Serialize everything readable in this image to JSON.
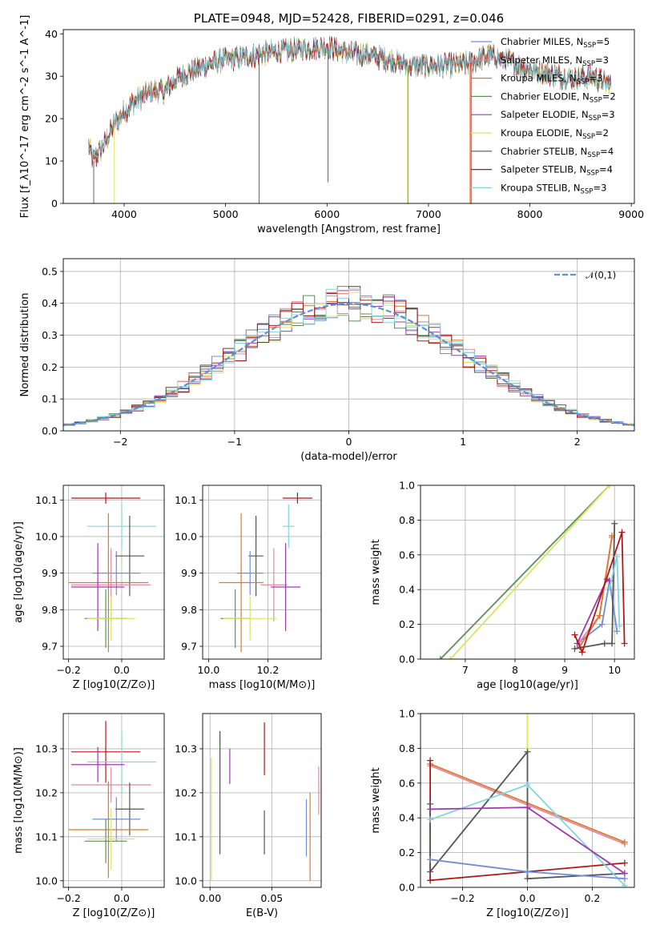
{
  "colors": {
    "Chabrier MILES": "#6f8de0",
    "Salpeter MILES": "#e28aa0",
    "Kroupa MILES": "#e0772a",
    "Chabrier ELODIE": "#5e8f5a",
    "Salpeter ELODIE": "#a039b0",
    "Kroupa ELODIE": "#d6e660",
    "Chabrier STELIB": "#555555",
    "Salpeter STELIB": "#b01818",
    "Kroupa STELIB": "#7fd6e0"
  },
  "chart_data": [
    {
      "id": "spectrum",
      "type": "line",
      "title": "PLATE=0948, MJD=52428, FIBERID=0291, z=0.046",
      "xlabel": "wavelength [Angstrom, rest frame]",
      "ylabel": "Flux [f_λ10^-17 erg cm^-2 s^-1 A^-1]",
      "xlim": [
        3400,
        9030
      ],
      "ylim": [
        0,
        41
      ],
      "xticks": [
        4000,
        5000,
        6000,
        7000,
        8000,
        9000
      ],
      "yticks": [
        0,
        10,
        20,
        30,
        40
      ],
      "grid": false,
      "legend_position": "upper right",
      "legend": [
        {
          "name": "Chabrier MILES",
          "nssp": "5"
        },
        {
          "name": "Salpeter MILES",
          "nssp": "3"
        },
        {
          "name": "Kroupa MILES",
          "nssp": "3"
        },
        {
          "name": "Chabrier ELODIE",
          "nssp": "2"
        },
        {
          "name": "Salpeter ELODIE",
          "nssp": "3"
        },
        {
          "name": "Kroupa ELODIE",
          "nssp": "2"
        },
        {
          "name": "Chabrier STELIB",
          "nssp": "4"
        },
        {
          "name": "Salpeter STELIB",
          "nssp": "4"
        },
        {
          "name": "Kroupa STELIB",
          "nssp": "3"
        }
      ],
      "continuum_x": [
        3650,
        3700,
        3800,
        3900,
        4000,
        4100,
        4200,
        4300,
        4400,
        4500,
        4600,
        4700,
        4800,
        5000,
        5200,
        5400,
        5600,
        5800,
        6000,
        6200,
        6400,
        6600,
        6800,
        7000,
        7200,
        7400,
        7600,
        7800,
        8000,
        8200,
        8400,
        8600,
        8800
      ],
      "continuum_y": [
        13.5,
        10,
        14,
        18.5,
        21.5,
        24,
        25.5,
        26.5,
        26.5,
        29,
        30.5,
        31.5,
        32.5,
        34,
        34.5,
        35.5,
        36,
        36.5,
        37,
        35.5,
        35,
        34,
        32.5,
        32.5,
        32.5,
        33,
        35,
        33.5,
        31.5,
        30.5,
        29.5,
        30,
        28
      ],
      "dropouts": [
        {
          "x": 3700,
          "y": 0,
          "series": "Chabrier STELIB"
        },
        {
          "x": 3900,
          "y": 0,
          "series": "Kroupa ELODIE"
        },
        {
          "x": 5330,
          "y": 0,
          "series": "Chabrier STELIB"
        },
        {
          "x": 6010,
          "y": 5,
          "series": "Chabrier STELIB"
        },
        {
          "x": 6790,
          "y": 0,
          "series": "Kroupa ELODIE"
        },
        {
          "x": 6800,
          "y": 0,
          "series": "Kroupa MILES"
        },
        {
          "x": 7410,
          "y": 0,
          "series": "Kroupa MILES"
        },
        {
          "x": 7420,
          "y": 0,
          "series": "Salpeter STELIB"
        }
      ]
    },
    {
      "id": "residuals",
      "type": "histogram",
      "xlabel": "(data-model)/error",
      "ylabel": "Normed distribution",
      "xlim": [
        -2.5,
        2.5
      ],
      "ylim": [
        0,
        0.54
      ],
      "xticks": [
        -2,
        -1,
        0,
        1,
        2
      ],
      "yticks": [
        0.0,
        0.1,
        0.2,
        0.3,
        0.4,
        0.5
      ],
      "grid": true,
      "legend_position": "upper right",
      "reference_curve": {
        "name": "𝒩(0,1)",
        "mean": 0,
        "sigma": 1
      },
      "bin_width": 0.1
    },
    {
      "id": "age_vs_Z",
      "type": "scatter",
      "xlabel": "Z [log10(Z/Z⊙)]",
      "ylabel": "age  [log10(age/yr)]",
      "xlim": [
        -0.22,
        0.16
      ],
      "ylim": [
        9.665,
        10.14
      ],
      "xticks": [
        -0.2,
        0.0
      ],
      "yticks": [
        9.7,
        9.8,
        9.9,
        10.0,
        10.1
      ],
      "grid": true,
      "points": [
        {
          "series": "Salpeter STELIB",
          "x": -0.06,
          "xerr": 0.13,
          "y": 10.105,
          "yerr": 0.015
        },
        {
          "series": "Kroupa STELIB",
          "x": 0.0,
          "xerr": 0.13,
          "y": 10.028,
          "yerr": 0.06
        },
        {
          "series": "Chabrier STELIB",
          "x": 0.03,
          "xerr": 0.055,
          "y": 9.947,
          "yerr": 0.11
        },
        {
          "series": "Chabrier MILES",
          "x": -0.02,
          "xerr": 0.09,
          "y": 9.9,
          "yerr": 0.06
        },
        {
          "series": "Kroupa MILES",
          "x": -0.05,
          "xerr": 0.15,
          "y": 9.874,
          "yerr": 0.19
        },
        {
          "series": "Salpeter MILES",
          "x": -0.04,
          "xerr": 0.15,
          "y": 9.868,
          "yerr": 0.1
        },
        {
          "series": "Salpeter ELODIE",
          "x": -0.09,
          "xerr": 0.1,
          "y": 9.862,
          "yerr": 0.12
        },
        {
          "series": "Chabrier ELODIE",
          "x": -0.06,
          "xerr": 0.08,
          "y": 9.776,
          "yerr": 0.08
        },
        {
          "series": "Kroupa ELODIE",
          "x": -0.04,
          "xerr": 0.09,
          "y": 9.776,
          "yerr": 0.06
        }
      ]
    },
    {
      "id": "age_vs_mass",
      "type": "scatter",
      "xlabel": "mass [log10(M/M⊙)]",
      "ylabel": "",
      "xlim": [
        9.98,
        10.38
      ],
      "ylim": [
        9.665,
        10.14
      ],
      "xticks": [
        10.0,
        10.2
      ],
      "yticks": [
        9.7,
        9.8,
        9.9,
        10.0,
        10.1
      ],
      "grid": true,
      "points": [
        {
          "series": "Salpeter STELIB",
          "x": 10.3,
          "xerr": 0.05,
          "y": 10.105,
          "yerr": 0.015
        },
        {
          "series": "Kroupa STELIB",
          "x": 10.27,
          "xerr": 0.02,
          "y": 10.028,
          "yerr": 0.06
        },
        {
          "series": "Chabrier STELIB",
          "x": 10.16,
          "xerr": 0.025,
          "y": 9.947,
          "yerr": 0.11
        },
        {
          "series": "Chabrier MILES",
          "x": 10.14,
          "xerr": 0.045,
          "y": 9.9,
          "yerr": 0.06
        },
        {
          "series": "Kroupa MILES",
          "x": 10.11,
          "xerr": 0.075,
          "y": 9.874,
          "yerr": 0.19
        },
        {
          "series": "Salpeter MILES",
          "x": 10.22,
          "xerr": 0.045,
          "y": 9.868,
          "yerr": 0.1
        },
        {
          "series": "Salpeter ELODIE",
          "x": 10.26,
          "xerr": 0.05,
          "y": 9.862,
          "yerr": 0.12
        },
        {
          "series": "Chabrier ELODIE",
          "x": 10.09,
          "xerr": 0.05,
          "y": 9.776,
          "yerr": 0.08
        },
        {
          "series": "Kroupa ELODIE",
          "x": 10.14,
          "xerr": 0.09,
          "y": 9.776,
          "yerr": 0.06
        }
      ]
    },
    {
      "id": "weight_vs_age",
      "type": "line",
      "xlabel": "age  [log10(age/yr)]",
      "ylabel": "mass weight",
      "xlim": [
        6.1,
        10.4
      ],
      "ylim": [
        0,
        1.0
      ],
      "xticks": [
        7,
        8,
        9,
        10
      ],
      "yticks": [
        0.0,
        0.2,
        0.4,
        0.6,
        0.8,
        1.0
      ],
      "grid": true,
      "series": [
        {
          "name": "Chabrier ELODIE",
          "x": [
            6.5,
            9.9
          ],
          "y": [
            0.0,
            1.0
          ]
        },
        {
          "name": "Kroupa ELODIE",
          "x": [
            6.7,
            9.9
          ],
          "y": [
            0.0,
            1.0
          ]
        },
        {
          "name": "Chabrier MILES",
          "x": [
            9.25,
            9.75,
            9.9,
            10.05
          ],
          "y": [
            0.09,
            0.2,
            0.45,
            0.16
          ]
        },
        {
          "name": "Salpeter MILES",
          "x": [
            9.3,
            9.7,
            9.95
          ],
          "y": [
            0.1,
            0.25,
            0.7
          ]
        },
        {
          "name": "Kroupa MILES",
          "x": [
            9.3,
            9.7,
            9.95
          ],
          "y": [
            0.07,
            0.25,
            0.71
          ]
        },
        {
          "name": "Salpeter ELODIE",
          "x": [
            9.25,
            9.85,
            9.9
          ],
          "y": [
            0.09,
            0.46,
            0.45
          ]
        },
        {
          "name": "Chabrier STELIB",
          "x": [
            9.2,
            9.8,
            9.95,
            10.0
          ],
          "y": [
            0.06,
            0.09,
            0.09,
            0.78
          ]
        },
        {
          "name": "Salpeter STELIB",
          "x": [
            9.2,
            9.35,
            10.15,
            10.2
          ],
          "y": [
            0.14,
            0.04,
            0.73,
            0.09
          ]
        },
        {
          "name": "Kroupa STELIB",
          "x": [
            9.9,
            10.05,
            10.1
          ],
          "y": [
            0.41,
            0.59,
            0.19
          ]
        }
      ]
    },
    {
      "id": "mass_vs_Z",
      "type": "scatter",
      "xlabel": "Z [log10(Z/Z⊙)]",
      "ylabel": "mass [log10(M/M⊙)]",
      "xlim": [
        -0.22,
        0.16
      ],
      "ylim": [
        9.985,
        10.38
      ],
      "xticks": [
        -0.2,
        0.0
      ],
      "yticks": [
        10.0,
        10.1,
        10.2,
        10.3
      ],
      "grid": true,
      "points": [
        {
          "series": "Salpeter STELIB",
          "x": -0.06,
          "xerr": 0.13,
          "y": 10.293,
          "yerr": 0.07
        },
        {
          "series": "Kroupa STELIB",
          "x": 0.0,
          "xerr": 0.13,
          "y": 10.27,
          "yerr": 0.07
        },
        {
          "series": "Salpeter ELODIE",
          "x": -0.09,
          "xerr": 0.1,
          "y": 10.264,
          "yerr": 0.04
        },
        {
          "series": "Salpeter MILES",
          "x": -0.04,
          "xerr": 0.15,
          "y": 10.218,
          "yerr": 0.04
        },
        {
          "series": "Chabrier STELIB",
          "x": 0.03,
          "xerr": 0.055,
          "y": 10.163,
          "yerr": 0.06
        },
        {
          "series": "Kroupa MILES",
          "x": -0.05,
          "xerr": 0.15,
          "y": 10.116,
          "yerr": 0.11
        },
        {
          "series": "Chabrier MILES",
          "x": -0.02,
          "xerr": 0.09,
          "y": 10.14,
          "yerr": 0.05
        },
        {
          "series": "Chabrier ELODIE",
          "x": -0.06,
          "xerr": 0.08,
          "y": 10.09,
          "yerr": 0.05
        },
        {
          "series": "Kroupa ELODIE",
          "x": -0.04,
          "xerr": 0.09,
          "y": 10.095,
          "yerr": 0.07
        }
      ]
    },
    {
      "id": "mass_vs_ebv",
      "type": "scatter",
      "xlabel": "E(B-V)",
      "ylabel": "",
      "xlim": [
        -0.006,
        0.09
      ],
      "ylim": [
        9.985,
        10.38
      ],
      "xticks": [
        0.0,
        0.05
      ],
      "yticks": [
        10.0,
        10.1,
        10.2,
        10.3
      ],
      "grid": true,
      "points": [
        {
          "series": "Kroupa ELODIE",
          "x": 0.001,
          "y": 10.14,
          "yerr": 0.14
        },
        {
          "series": "Kroupa STELIB",
          "x": 0.008,
          "y": 10.27,
          "yerr": 0.07
        },
        {
          "series": "Chabrier STELIB",
          "x": 0.008,
          "y": 10.2,
          "yerr": 0.14
        },
        {
          "series": "Salpeter ELODIE",
          "x": 0.016,
          "y": 10.26,
          "yerr": 0.04
        },
        {
          "series": "Salpeter STELIB",
          "x": 0.044,
          "y": 10.3,
          "yerr": 0.06
        },
        {
          "series": "Chabrier STELIB",
          "x": 0.044,
          "y": 10.11,
          "yerr": 0.05
        },
        {
          "series": "Chabrier MILES",
          "x": 0.078,
          "y": 10.12,
          "yerr": 0.065
        },
        {
          "series": "Kroupa MILES",
          "x": 0.081,
          "y": 10.1,
          "yerr": 0.1
        },
        {
          "series": "Salpeter MILES",
          "x": 0.088,
          "y": 10.205,
          "yerr": 0.055
        }
      ]
    },
    {
      "id": "weight_vs_Z",
      "type": "line",
      "xlabel": "Z [log10(Z/Z⊙)]",
      "ylabel": "mass weight",
      "xlim": [
        -0.33,
        0.33
      ],
      "ylim": [
        0,
        1.0
      ],
      "xticks": [
        -0.2,
        0.0,
        0.2
      ],
      "yticks": [
        0.0,
        0.2,
        0.4,
        0.6,
        0.8,
        1.0
      ],
      "grid": true,
      "series": [
        {
          "name": "Kroupa ELODIE",
          "x": [
            0.0,
            0.0
          ],
          "y": [
            0.8,
            1.0
          ]
        },
        {
          "name": "Salpeter MILES",
          "x": [
            -0.3,
            0.3
          ],
          "y": [
            0.7,
            0.25
          ]
        },
        {
          "name": "Kroupa MILES",
          "x": [
            -0.3,
            0.3
          ],
          "y": [
            0.71,
            0.26
          ]
        },
        {
          "name": "Salpeter STELIB",
          "x": [
            -0.3,
            -0.3,
            0.0,
            0.3
          ],
          "y": [
            0.73,
            0.04,
            0.09,
            0.14
          ]
        },
        {
          "name": "Chabrier STELIB",
          "x": [
            -0.3,
            -0.3,
            0.0,
            0.0,
            0.3
          ],
          "y": [
            0.48,
            0.09,
            0.78,
            0.05,
            0.08
          ]
        },
        {
          "name": "Kroupa STELIB",
          "x": [
            -0.3,
            0.0,
            0.3
          ],
          "y": [
            0.39,
            0.59,
            0.01
          ]
        },
        {
          "name": "Salpeter ELODIE",
          "x": [
            -0.3,
            0.0,
            0.3
          ],
          "y": [
            0.45,
            0.46,
            0.08
          ]
        },
        {
          "name": "Chabrier MILES",
          "x": [
            -0.3,
            0.0,
            0.3
          ],
          "y": [
            0.16,
            0.09,
            0.05
          ]
        }
      ]
    }
  ]
}
